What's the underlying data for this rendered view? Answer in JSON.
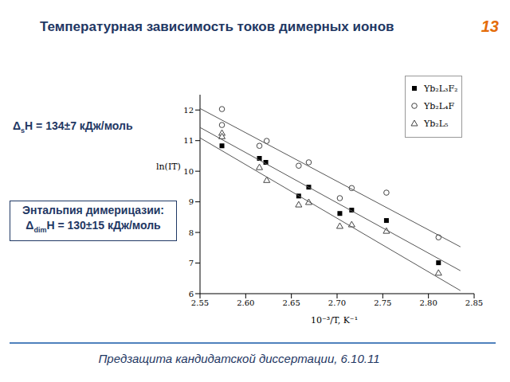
{
  "slide_number": "13",
  "footer": "Предзащита кандидатской диссертации, 6.10.11",
  "chart_data": {
    "type": "scatter",
    "title": "Температурная зависимость токов димерных ионов",
    "x_label": "10⁻³/T, K⁻¹",
    "y_label": "ln(IT)",
    "xlim": [
      2.55,
      2.85
    ],
    "xticks": [
      2.55,
      {
        "value": 2.6,
        "label": "2.60"
      },
      2.65,
      {
        "value": 2.7,
        "label": "2.70"
      },
      2.75,
      {
        "value": 2.8,
        "label": "2.80"
      },
      2.85
    ],
    "ylim": [
      6,
      12.5
    ],
    "yticks": [
      6,
      7,
      8,
      9,
      10,
      11,
      12
    ],
    "grid": false,
    "legend": "upper right",
    "annotations": [
      {
        "prefix": "Δ",
        "sub": "s",
        "suffix": "H = 134±7 кДж/моль"
      }
    ],
    "box": {
      "heading": "Энтальпия димерицазии:",
      "prefix": "Δ",
      "sub": "dim",
      "suffix": "H = 130±15 кДж/моль"
    },
    "series": [
      {
        "name": "Yb₂L₃F₂",
        "color": "#000000",
        "marker": "filled_square",
        "x": [
          2.574,
          2.615,
          2.622,
          2.658,
          2.669,
          2.703,
          2.716,
          2.754,
          2.811
        ],
        "values": [
          10.83,
          10.42,
          10.29,
          9.19,
          9.48,
          8.62,
          8.73,
          8.39,
          7.01
        ]
      },
      {
        "name": "Yb₂L₄F",
        "color": "#444444",
        "marker": "open_circle",
        "x": [
          2.574,
          2.574,
          2.615,
          2.623,
          2.658,
          2.669,
          2.703,
          2.716,
          2.754,
          2.811
        ],
        "values": [
          12.03,
          11.51,
          10.83,
          10.99,
          10.18,
          10.29,
          9.12,
          9.45,
          9.3,
          7.84
        ]
      },
      {
        "name": "Yb₂L₅",
        "color": "#444444",
        "marker": "open_triangle",
        "x": [
          2.574,
          2.574,
          2.615,
          2.623,
          2.658,
          2.669,
          2.703,
          2.716,
          2.754,
          2.811
        ],
        "values": [
          11.25,
          11.14,
          10.13,
          9.71,
          8.91,
          8.99,
          8.21,
          8.26,
          8.05,
          6.68
        ]
      },
      {
        "type": "line",
        "color": "#555555",
        "marker": "none",
        "x": [
          2.55,
          2.835
        ],
        "values": [
          12.05,
          7.53
        ]
      },
      {
        "type": "line",
        "color": "#555555",
        "marker": "none",
        "x": [
          2.55,
          2.835
        ],
        "values": [
          11.43,
          6.75
        ]
      },
      {
        "type": "line",
        "color": "#555555",
        "marker": "none",
        "x": [
          2.55,
          2.835
        ],
        "values": [
          11.09,
          6.1
        ]
      }
    ]
  }
}
